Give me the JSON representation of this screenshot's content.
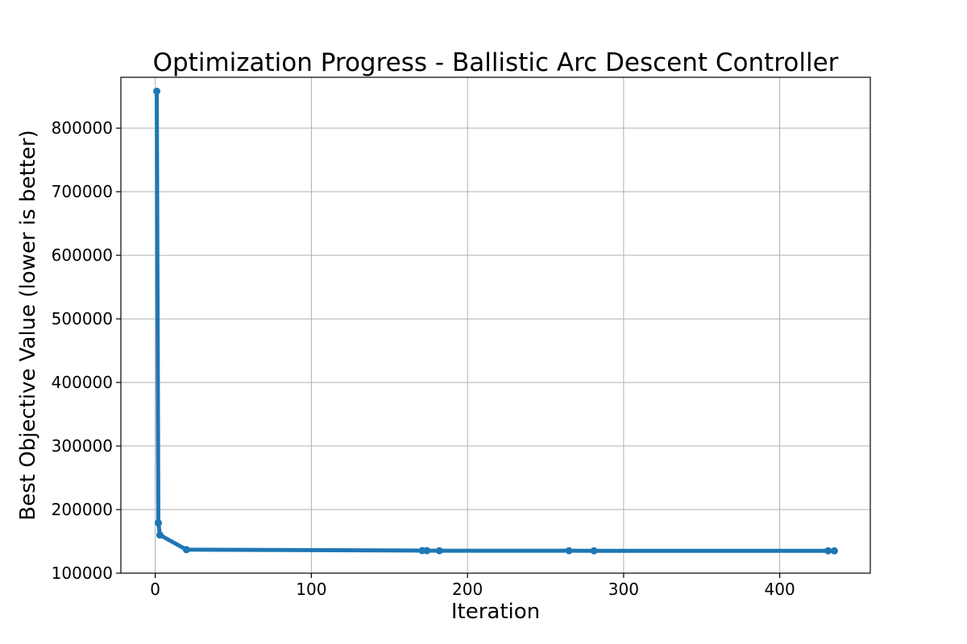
{
  "chart_data": {
    "type": "line",
    "title": "Optimization Progress - Ballistic Arc Descent Controller",
    "xlabel": "Iteration",
    "ylabel": "Best Objective Value (lower is better)",
    "xlim": [
      -22,
      458
    ],
    "ylim": [
      100000,
      880000
    ],
    "xticks": [
      0,
      100,
      200,
      300,
      400
    ],
    "xtick_labels": [
      "0",
      "100",
      "200",
      "300",
      "400"
    ],
    "yticks": [
      100000,
      200000,
      300000,
      400000,
      500000,
      600000,
      700000,
      800000
    ],
    "ytick_labels": [
      "100000",
      "200000",
      "300000",
      "400000",
      "500000",
      "600000",
      "700000",
      "800000"
    ],
    "grid": true,
    "color": "#1f77b4",
    "x": [
      1,
      2,
      3,
      20,
      171,
      174,
      182,
      265,
      281,
      431,
      435
    ],
    "y": [
      858000,
      179000,
      160000,
      137000,
      135500,
      135400,
      135300,
      135300,
      135200,
      135200,
      135100
    ]
  }
}
